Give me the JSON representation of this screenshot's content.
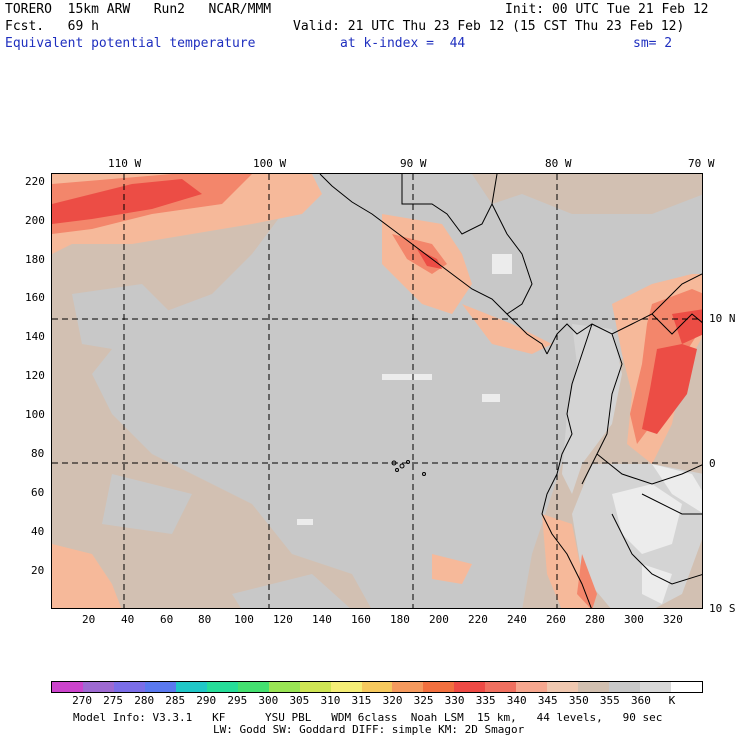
{
  "header": {
    "model": "TORERO  15km ARW   Run2   NCAR/MMM",
    "init": "Init: 00 UTC Tue 21 Feb 12",
    "fcst": "Fcst.   69 h",
    "valid": "Valid: 21 UTC Thu 23 Feb 12 (15 CST Thu 23 Feb 12)",
    "field": "Equivalent potential temperature",
    "level": "at k-index =  44",
    "smooth": "sm= 2"
  },
  "top_longitudes": [
    "110 W",
    "100 W",
    "90 W",
    "80 W",
    "70 W"
  ],
  "right_latitudes": [
    "10 N",
    "0",
    "10 S"
  ],
  "y_ticks": [
    "220",
    "200",
    "180",
    "160",
    "140",
    "120",
    "100",
    "80",
    "60",
    "40",
    "20"
  ],
  "x_ticks": [
    "20",
    "40",
    "60",
    "80",
    "100",
    "120",
    "140",
    "160",
    "180",
    "200",
    "220",
    "240",
    "260",
    "280",
    "300",
    "320"
  ],
  "legend": {
    "colors": [
      "#cc44cc",
      "#9e6ad2",
      "#7b6ee8",
      "#5a79f0",
      "#20c7c7",
      "#26dd99",
      "#44e070",
      "#99e455",
      "#cfe555",
      "#f5ee77",
      "#f6c95e",
      "#f59a5e",
      "#f2703f",
      "#ee4a45",
      "#f07060",
      "#f6a78f",
      "#f0c8b0",
      "#d2c0b0",
      "#c8c8c8",
      "#d8d8d8",
      "#ffffff"
    ],
    "labels": [
      "270",
      "275",
      "280",
      "285",
      "290",
      "295",
      "300",
      "305",
      "310",
      "315",
      "320",
      "325",
      "330",
      "335",
      "340",
      "345",
      "350",
      "355",
      "360",
      "K"
    ]
  },
  "footer": {
    "line1": "Model Info: V3.3.1   KF      YSU PBL   WDM 6class  Noah LSM  15 km,   44 levels,   90 sec",
    "line2": "LW: Godd SW: Goddard DIFF: simple KM: 2D Smagor"
  }
}
